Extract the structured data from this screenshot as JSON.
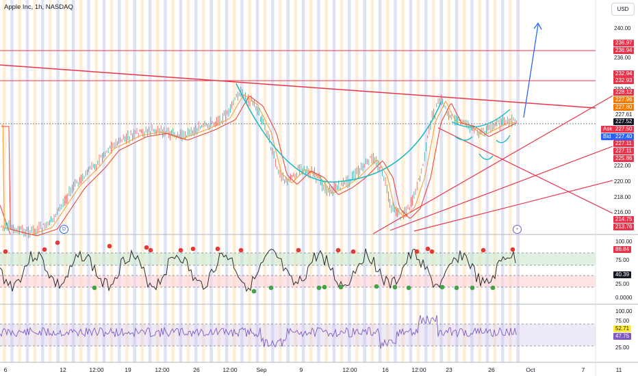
{
  "header": {
    "symbol_title": "Apple Inc, 1h, NASDAQ",
    "currency_button": "USD"
  },
  "colors": {
    "price_line": "#e8344a",
    "trend_blue": "#2962ff",
    "ma_fast": "#f4a23c",
    "ma_slow": "#e64a3a",
    "cup_curve": "#1ebac0",
    "up_candle": "#26a69a",
    "down_candle": "#ef5350",
    "rsi_line": "#7e57c2",
    "stoch_line": "#2b2b2b",
    "stripe_orange": "#ffe0b2",
    "stripe_blue": "#c5cae9"
  },
  "price_axis": {
    "ticks": [
      "240.00",
      "236.00",
      "232.00",
      "222.00",
      "220.00",
      "218.00",
      "216.00"
    ],
    "tags": [
      {
        "label": "236.97",
        "color": "#e8344a"
      },
      {
        "label": "236.94",
        "color": "#e8344a"
      },
      {
        "label": "232.94",
        "color": "#e8344a"
      },
      {
        "label": "232.93",
        "color": "#e8344a"
      },
      {
        "label": "228.12",
        "color": "#e8344a"
      },
      {
        "label": "227.96",
        "color": "#f57c00"
      },
      {
        "label": "227.80",
        "color": "#f57c00"
      },
      {
        "label": "227.61",
        "color": "#ffffff",
        "text": "#131722"
      },
      {
        "label": "227.52",
        "color": "#131722"
      },
      {
        "label": "227.50",
        "color": "#e8344a",
        "prefix": "Ask"
      },
      {
        "label": "227.40",
        "color": "#2962ff",
        "prefix": "Bid"
      },
      {
        "label": "227.11",
        "color": "#e8344a"
      },
      {
        "label": "227.11",
        "color": "#e8344a"
      },
      {
        "label": "225.86",
        "color": "#e8344a"
      },
      {
        "label": "214.75",
        "color": "#e8344a"
      },
      {
        "label": "213.76",
        "color": "#e8344a"
      }
    ]
  },
  "stoch_axis": {
    "ticks": [
      "100.00",
      "75.00",
      "50.00",
      "25.00",
      "0.0000"
    ],
    "tags": [
      {
        "label": "86.84",
        "color": "#e8344a"
      },
      {
        "label": "40.39",
        "color": "#131722"
      }
    ]
  },
  "rsi_axis": {
    "ticks": [
      "100.00",
      "75.00",
      "25.00"
    ],
    "tags": [
      {
        "label": "52.71",
        "color": "#ffeb3b",
        "text": "#131722"
      },
      {
        "label": "47.75",
        "color": "#7e57c2"
      }
    ]
  },
  "time_axis": {
    "labels": [
      "6",
      "12",
      "12:00",
      "19",
      "12:00",
      "26",
      "12:00",
      "Sep",
      "9",
      "12:00",
      "16",
      "12:00",
      "23",
      "26",
      "Oct",
      "7",
      "11"
    ]
  },
  "markers": {
    "dividend_icon": "D",
    "add_icon": "+"
  }
}
